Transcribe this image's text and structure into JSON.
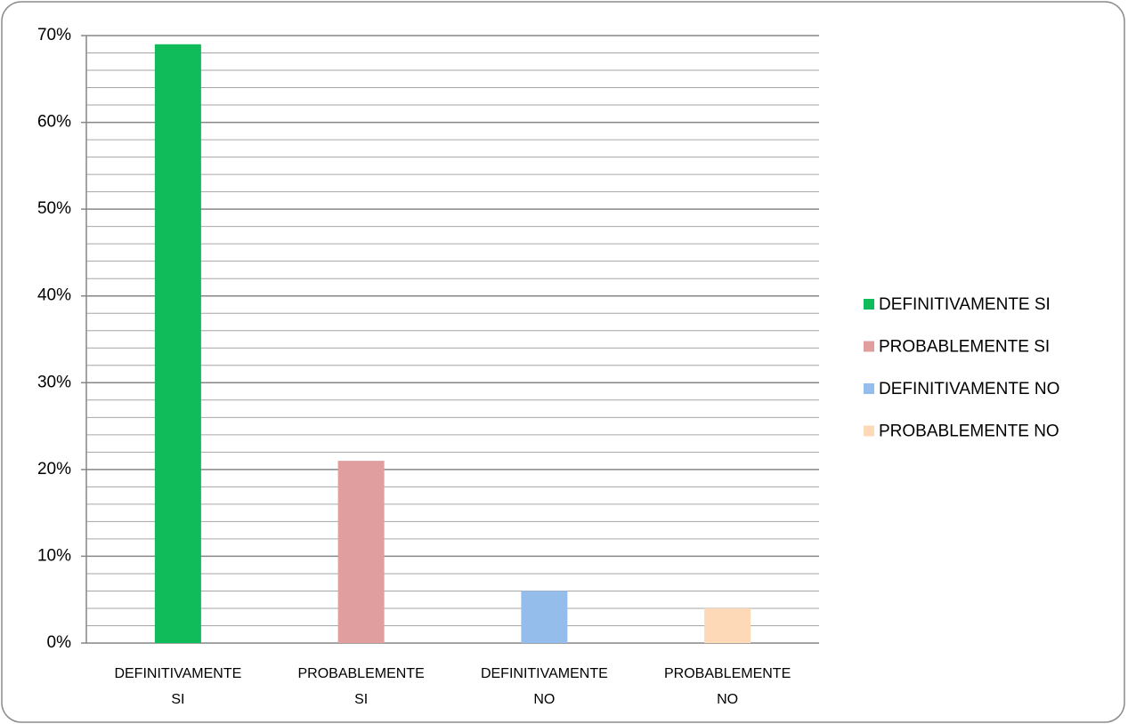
{
  "chart_data": {
    "type": "bar",
    "categories": [
      "DEFINITIVAMENTE SI",
      "PROBABLEMENTE SI",
      "DEFINITIVAMENTE NO",
      "PROBABLEMENTE NO"
    ],
    "values": [
      69,
      21,
      6,
      4
    ],
    "colors": [
      "#10bb59",
      "#e09e9e",
      "#95bdeb",
      "#fdd9b8"
    ],
    "ylim": [
      0,
      70
    ],
    "yticks": [
      {
        "value": 0,
        "label": "0%"
      },
      {
        "value": 10,
        "label": "10%"
      },
      {
        "value": 20,
        "label": "20%"
      },
      {
        "value": 30,
        "label": "30%"
      },
      {
        "value": 40,
        "label": "40%"
      },
      {
        "value": 50,
        "label": "50%"
      },
      {
        "value": 60,
        "label": "60%"
      },
      {
        "value": 70,
        "label": "70%"
      }
    ],
    "minor_yticks": [
      2,
      4,
      6,
      8,
      12,
      14,
      16,
      18,
      22,
      24,
      26,
      28,
      32,
      34,
      36,
      38,
      42,
      44,
      46,
      48,
      52,
      54,
      56,
      58,
      62,
      64,
      66,
      68
    ],
    "grid": true,
    "legend": "right"
  }
}
